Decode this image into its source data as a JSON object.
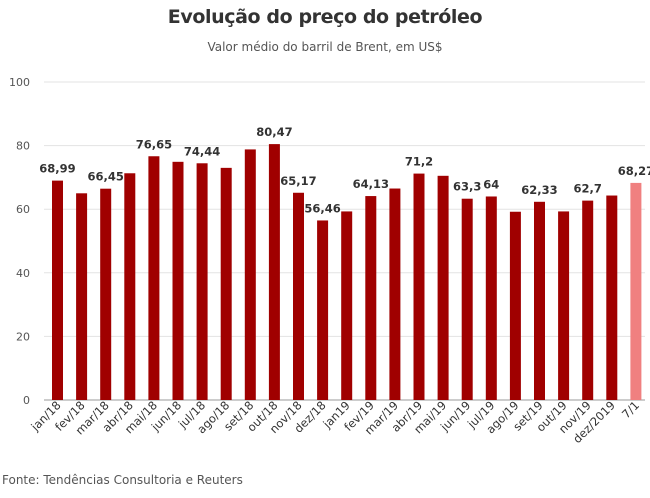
{
  "title": "Evolução do preço do petróleo",
  "subtitle": "Valor médio do barril de Brent, em US$",
  "source": "Fonte: Tendências Consultoria e Reuters",
  "colors": {
    "bar": "#a00000",
    "highlight": "#f08080",
    "grid": "#e3e3e3",
    "axis": "#999999"
  },
  "chart_data": {
    "type": "bar",
    "ylim": [
      0,
      100
    ],
    "yticks": [
      0,
      20,
      40,
      60,
      80,
      100
    ],
    "grid": true,
    "categories": [
      "jan/18",
      "fev/18",
      "mar/18",
      "abr/18",
      "mai/18",
      "jun/18",
      "jul/18",
      "ago/18",
      "set/18",
      "out/18",
      "nov/18",
      "dez/18",
      "jan19",
      "fev/19",
      "mar/19",
      "abr/19",
      "mai/19",
      "jun/19",
      "jul/19",
      "ago/19",
      "set/19",
      "out/19",
      "nov/19",
      "dez/2019",
      "7/1"
    ],
    "values": [
      68.99,
      65,
      66.45,
      71.3,
      76.65,
      74.9,
      74.44,
      73,
      78.8,
      80.47,
      65.17,
      56.46,
      59.3,
      64.13,
      66.5,
      71.2,
      70.5,
      63.3,
      64,
      59.2,
      62.33,
      59.3,
      62.7,
      64.3,
      68.27
    ],
    "data_labels": [
      "68,99",
      "",
      "66,45",
      "",
      "76,65",
      "",
      "74,44",
      "",
      "",
      "80,47",
      "65,17",
      "56,46",
      "",
      "64,13",
      "",
      "71,2",
      "",
      "63,3",
      "64",
      "",
      "62,33",
      "",
      "62,7",
      "",
      "68,27"
    ],
    "highlight_index": 24
  }
}
